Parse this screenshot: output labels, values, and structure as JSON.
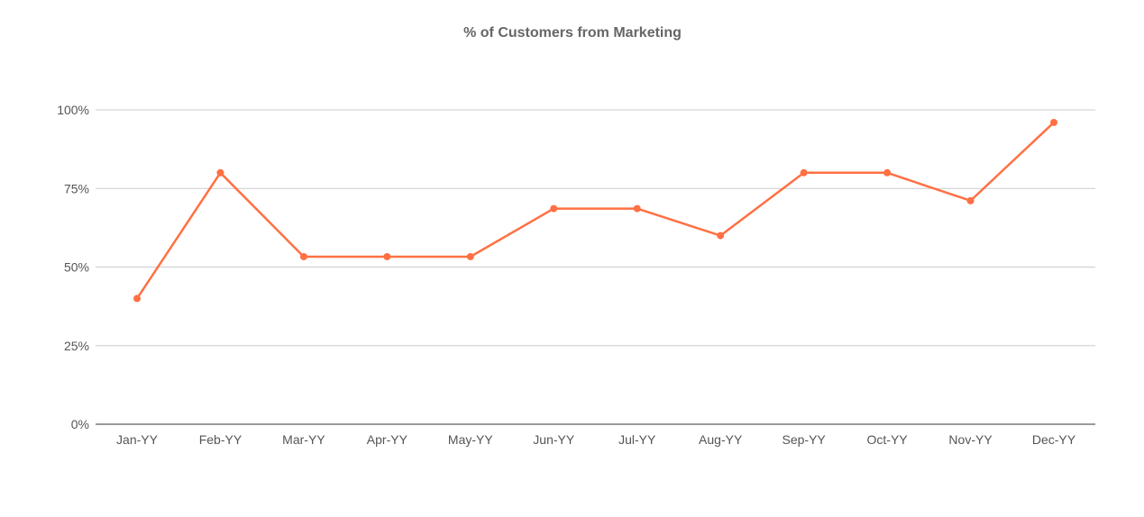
{
  "chart_data": {
    "type": "line",
    "title": "% of Customers from Marketing",
    "xlabel": "",
    "ylabel": "",
    "categories": [
      "Jan-YY",
      "Feb-YY",
      "Mar-YY",
      "Apr-YY",
      "May-YY",
      "Jun-YY",
      "Jul-YY",
      "Aug-YY",
      "Sep-YY",
      "Oct-YY",
      "Nov-YY",
      "Dec-YY"
    ],
    "series": [
      {
        "values": [
          40,
          80,
          53.3,
          53.3,
          53.3,
          68.6,
          68.6,
          60,
          80,
          80,
          71.1,
          96
        ],
        "color": "#ff7043"
      }
    ],
    "ylim": [
      0,
      100
    ],
    "yticks": [
      {
        "value": 0,
        "label": "0%"
      },
      {
        "value": 25,
        "label": "25%"
      },
      {
        "value": 50,
        "label": "50%"
      },
      {
        "value": 75,
        "label": "75%"
      },
      {
        "value": 100,
        "label": "100%"
      }
    ],
    "grid": true,
    "legend": "none"
  }
}
